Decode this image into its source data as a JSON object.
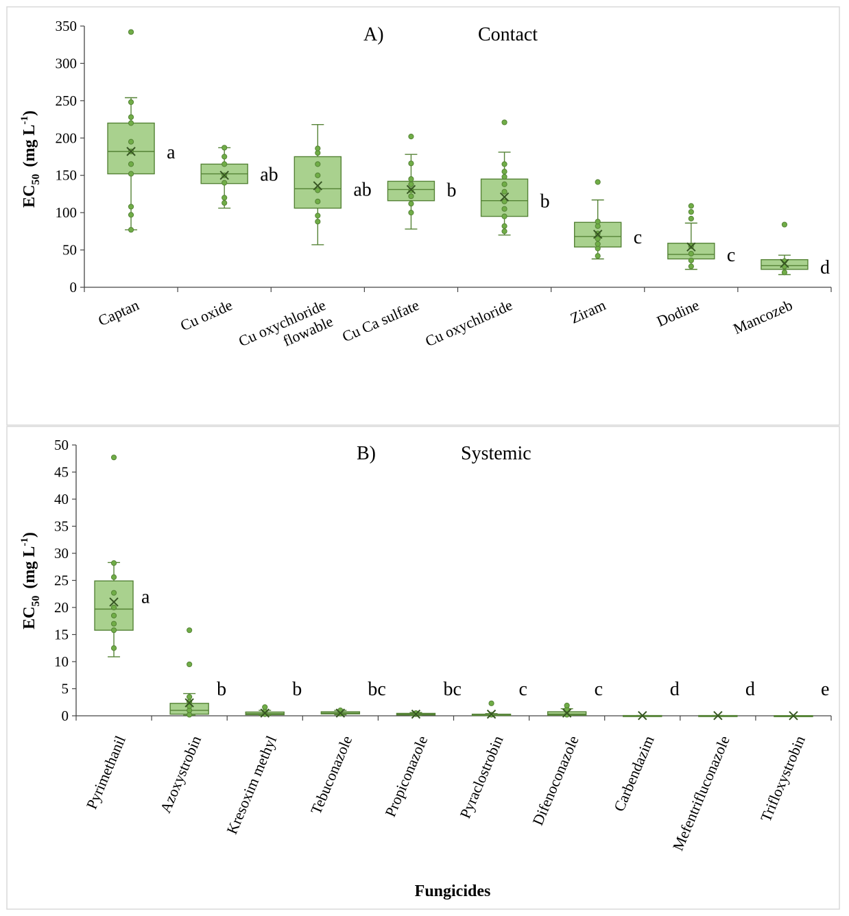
{
  "chart_data": [
    {
      "type": "box",
      "title_label": "A)",
      "title": "Contact",
      "ylabel_main": "EC",
      "ylabel_sub": "50",
      "ylabel_unit": "(mg L",
      "ylabel_exp": "-1",
      "ylabel_close": ")",
      "ylim": [
        0,
        350
      ],
      "yticks": [
        0,
        50,
        100,
        150,
        200,
        250,
        300,
        350
      ],
      "style": {
        "fill": "#a9d18e",
        "stroke": "#548235",
        "point": "#70ad47"
      },
      "categories": [
        {
          "name": "Captan",
          "lines": [
            "Captan"
          ],
          "q1": 152,
          "median": 182,
          "q3": 220,
          "mean": 182,
          "whisker_low": 77,
          "whisker_high": 254,
          "points": [
            77,
            97,
            108,
            152,
            165,
            182,
            195,
            220,
            228,
            248,
            342
          ],
          "letter": "a"
        },
        {
          "name": "Cu oxide",
          "lines": [
            "Cu oxide"
          ],
          "q1": 139,
          "median": 152,
          "q3": 165,
          "mean": 150,
          "whisker_low": 106,
          "whisker_high": 187,
          "points": [
            113,
            120,
            140,
            150,
            165,
            175,
            187
          ],
          "letter": "ab"
        },
        {
          "name": "Cu oxychloride flowable",
          "lines": [
            "Cu oxychloride",
            "flowable"
          ],
          "q1": 106,
          "median": 132,
          "q3": 175,
          "mean": 136,
          "whisker_low": 57,
          "whisker_high": 218,
          "points": [
            88,
            96,
            115,
            130,
            150,
            165,
            180,
            186
          ],
          "letter": "ab"
        },
        {
          "name": "Cu Ca sulfate",
          "lines": [
            "Cu Ca sulfate"
          ],
          "q1": 116,
          "median": 131,
          "q3": 142,
          "mean": 131,
          "whisker_low": 78,
          "whisker_high": 178,
          "points": [
            100,
            112,
            122,
            130,
            138,
            145,
            166,
            202
          ],
          "letter": "b"
        },
        {
          "name": "Cu oxychloride",
          "lines": [
            "Cu oxychloride"
          ],
          "q1": 95,
          "median": 116,
          "q3": 145,
          "mean": 121,
          "whisker_low": 70,
          "whisker_high": 181,
          "points": [
            75,
            82,
            95,
            105,
            115,
            128,
            138,
            148,
            155,
            165,
            221
          ],
          "letter": "b"
        },
        {
          "name": "Ziram",
          "lines": [
            "Ziram"
          ],
          "q1": 54,
          "median": 68,
          "q3": 87,
          "mean": 71,
          "whisker_low": 38,
          "whisker_high": 117,
          "points": [
            42,
            52,
            58,
            65,
            72,
            82,
            88,
            141
          ],
          "letter": "c"
        },
        {
          "name": "Dodine",
          "lines": [
            "Dodine"
          ],
          "q1": 38,
          "median": 44,
          "q3": 59,
          "mean": 54,
          "whisker_low": 24,
          "whisker_high": 86,
          "points": [
            28,
            36,
            45,
            55,
            92,
            101,
            109
          ],
          "letter": "c"
        },
        {
          "name": "Mancozeb",
          "lines": [
            "Mancozeb"
          ],
          "q1": 24,
          "median": 29,
          "q3": 37,
          "mean": 32,
          "whisker_low": 17,
          "whisker_high": 43,
          "points": [
            20,
            28,
            35,
            84
          ],
          "letter": "d"
        }
      ]
    },
    {
      "type": "box",
      "title_label": "B)",
      "title": "Systemic",
      "ylabel_main": "EC",
      "ylabel_sub": "50",
      "ylabel_unit": "(mg L",
      "ylabel_exp": "-1",
      "ylabel_close": ")",
      "xlabel": "Fungicides",
      "ylim": [
        0,
        50
      ],
      "yticks": [
        0,
        5,
        10,
        15,
        20,
        25,
        30,
        35,
        40,
        45,
        50
      ],
      "style": {
        "fill": "#a9d18e",
        "stroke": "#548235",
        "point": "#70ad47"
      },
      "categories": [
        {
          "name": "Pyrimethanil",
          "q1": 15.8,
          "median": 19.7,
          "q3": 24.9,
          "mean": 21.0,
          "whisker_low": 10.9,
          "whisker_high": 28.3,
          "points": [
            12.5,
            15.8,
            17.0,
            18.5,
            20.0,
            22.7,
            25.6,
            28.2,
            47.7
          ],
          "letter": "a"
        },
        {
          "name": "Azoxystrobin",
          "q1": 0.3,
          "median": 1.0,
          "q3": 2.3,
          "mean": 2.4,
          "whisker_low": 0.1,
          "whisker_high": 4.1,
          "points": [
            0.2,
            1.0,
            1.8,
            2.6,
            3.5,
            9.5,
            15.8
          ],
          "letter": "b"
        },
        {
          "name": "Kresoxim methyl",
          "q1": 0.2,
          "median": 0.4,
          "q3": 0.7,
          "mean": 0.5,
          "whisker_low": 0.05,
          "whisker_high": 1.0,
          "points": [
            0.3,
            0.8,
            1.6
          ],
          "letter": "b"
        },
        {
          "name": "Tebuconazole",
          "q1": 0.35,
          "median": 0.5,
          "q3": 0.75,
          "mean": 0.5,
          "whisker_low": 0.2,
          "whisker_high": 1.0,
          "points": [
            0.4,
            0.8,
            1.0
          ],
          "letter": "bc"
        },
        {
          "name": "Propiconazole",
          "q1": 0.15,
          "median": 0.3,
          "q3": 0.45,
          "mean": 0.3,
          "whisker_low": 0.05,
          "whisker_high": 0.6,
          "points": [
            0.3,
            0.5
          ],
          "letter": "bc"
        },
        {
          "name": "Pyraclostrobin",
          "q1": 0.05,
          "median": 0.1,
          "q3": 0.3,
          "mean": 0.3,
          "whisker_low": 0.02,
          "whisker_high": 0.4,
          "points": [
            0.2,
            2.3
          ],
          "letter": "c"
        },
        {
          "name": "Difenoconazole",
          "q1": 0.1,
          "median": 0.3,
          "q3": 0.75,
          "mean": 0.5,
          "whisker_low": 0.05,
          "whisker_high": 1.3,
          "points": [
            0.2,
            1.2,
            1.9
          ],
          "letter": "c"
        },
        {
          "name": "Carbendazim",
          "q1": 0.02,
          "median": 0.03,
          "q3": 0.05,
          "mean": 0.04,
          "whisker_low": 0.01,
          "whisker_high": 0.06,
          "points": [],
          "letter": "d"
        },
        {
          "name": "Mefentrifluconazole",
          "q1": 0.02,
          "median": 0.03,
          "q3": 0.05,
          "mean": 0.04,
          "whisker_low": 0.01,
          "whisker_high": 0.06,
          "points": [],
          "letter": "d"
        },
        {
          "name": "Trifloxystrobin",
          "q1": 0.01,
          "median": 0.02,
          "q3": 0.03,
          "mean": 0.02,
          "whisker_low": 0.01,
          "whisker_high": 0.04,
          "points": [],
          "letter": "e"
        }
      ]
    }
  ]
}
